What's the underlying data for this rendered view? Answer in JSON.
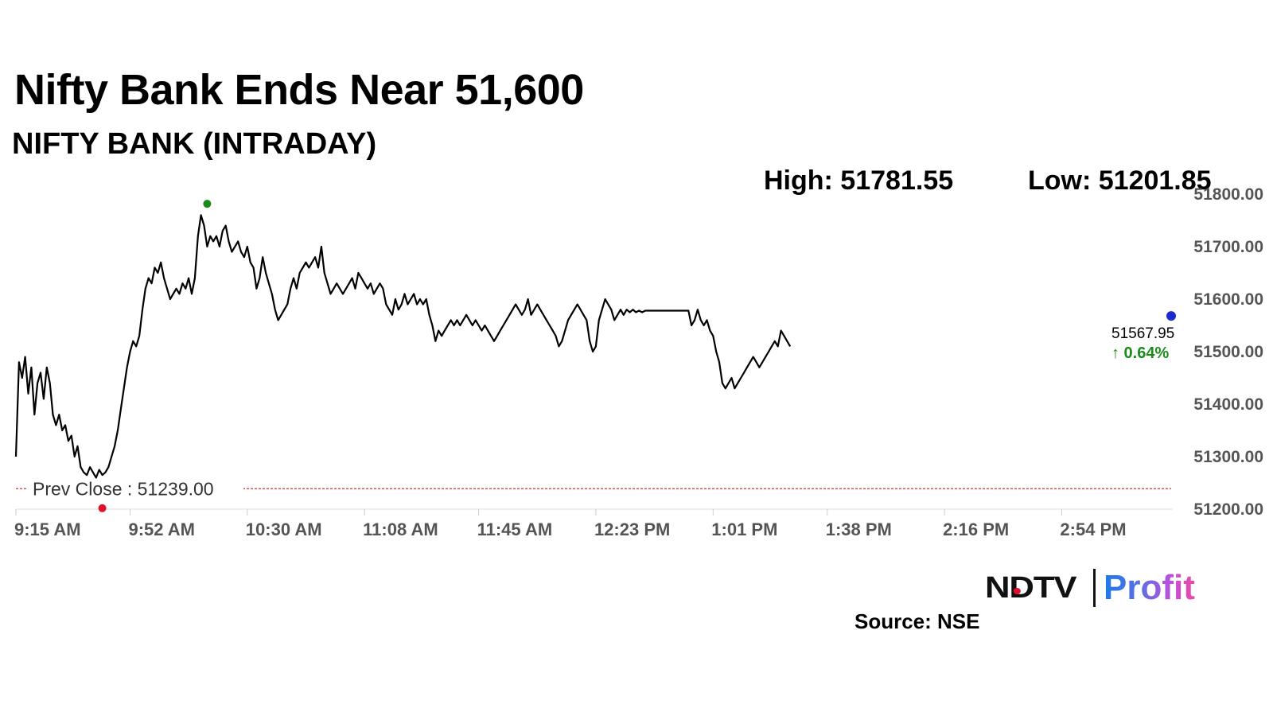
{
  "title": "Nifty Bank Ends Near 51,600",
  "subtitle": "NIFTY BANK (INTRADAY)",
  "high_label": "High: 51781.55",
  "low_label": "Low: 51201.85",
  "source": "Source: NSE",
  "brand": {
    "ndtv": "NDTV",
    "profit": "Profit"
  },
  "colors": {
    "line": "#000000",
    "prev_close": "#e0302a",
    "high_marker": "#1a8a1a",
    "low_marker": "#e0102a",
    "close_marker": "#1a2ad0",
    "change_up": "#1a8a1a"
  },
  "chart_data": {
    "type": "line",
    "title": "NIFTY BANK (INTRADAY)",
    "ylim": [
      51200,
      51800
    ],
    "y_ticks": [
      "51200.00",
      "51300.00",
      "51400.00",
      "51500.00",
      "51600.00",
      "51700.00",
      "51800.00"
    ],
    "x_ticks": [
      "9:15 AM",
      "9:52 AM",
      "10:30 AM",
      "11:08 AM",
      "11:45 AM",
      "12:23 PM",
      "1:01 PM",
      "1:38 PM",
      "2:16 PM",
      "2:54 PM"
    ],
    "x_tick_minutes": [
      555,
      592,
      630,
      668,
      705,
      743,
      781,
      818,
      856,
      894
    ],
    "xlim_minutes": [
      555,
      930
    ],
    "prev_close": {
      "label": "Prev Close : 51239.00",
      "value": 51239.0
    },
    "high": {
      "value": 51781.55,
      "time": "10:17 AM"
    },
    "low": {
      "value": 51201.85,
      "time": "9:43 AM"
    },
    "close": {
      "value": 51567.95,
      "change_label": "↑ 0.64%"
    },
    "series": [
      {
        "values": [
          [
            555,
            51300
          ],
          [
            556,
            51480
          ],
          [
            557,
            51450
          ],
          [
            558,
            51490
          ],
          [
            559,
            51420
          ],
          [
            560,
            51470
          ],
          [
            561,
            51380
          ],
          [
            562,
            51440
          ],
          [
            563,
            51460
          ],
          [
            564,
            51410
          ],
          [
            565,
            51470
          ],
          [
            566,
            51440
          ],
          [
            567,
            51380
          ],
          [
            568,
            51360
          ],
          [
            569,
            51380
          ],
          [
            570,
            51350
          ],
          [
            571,
            51360
          ],
          [
            572,
            51330
          ],
          [
            573,
            51340
          ],
          [
            574,
            51300
          ],
          [
            575,
            51320
          ],
          [
            576,
            51280
          ],
          [
            577,
            51270
          ],
          [
            578,
            51265
          ],
          [
            579,
            51280
          ],
          [
            580,
            51270
          ],
          [
            581,
            51260
          ],
          [
            582,
            51275
          ],
          [
            583,
            51265
          ],
          [
            584,
            51270
          ],
          [
            585,
            51280
          ],
          [
            586,
            51300
          ],
          [
            587,
            51320
          ],
          [
            588,
            51350
          ],
          [
            589,
            51390
          ],
          [
            590,
            51430
          ],
          [
            591,
            51470
          ],
          [
            592,
            51500
          ],
          [
            593,
            51520
          ],
          [
            594,
            51510
          ],
          [
            595,
            51530
          ],
          [
            596,
            51580
          ],
          [
            597,
            51620
          ],
          [
            598,
            51640
          ],
          [
            599,
            51630
          ],
          [
            600,
            51660
          ],
          [
            601,
            51650
          ],
          [
            602,
            51670
          ],
          [
            603,
            51640
          ],
          [
            604,
            51620
          ],
          [
            605,
            51600
          ],
          [
            606,
            51610
          ],
          [
            607,
            51620
          ],
          [
            608,
            51610
          ],
          [
            609,
            51630
          ],
          [
            610,
            51620
          ],
          [
            611,
            51640
          ],
          [
            612,
            51610
          ],
          [
            613,
            51640
          ],
          [
            614,
            51720
          ],
          [
            615,
            51760
          ],
          [
            616,
            51740
          ],
          [
            617,
            51700
          ],
          [
            618,
            51720
          ],
          [
            619,
            51710
          ],
          [
            620,
            51720
          ],
          [
            621,
            51700
          ],
          [
            622,
            51730
          ],
          [
            623,
            51740
          ],
          [
            624,
            51710
          ],
          [
            625,
            51690
          ],
          [
            626,
            51700
          ],
          [
            627,
            51710
          ],
          [
            628,
            51690
          ],
          [
            629,
            51680
          ],
          [
            630,
            51700
          ],
          [
            631,
            51670
          ],
          [
            632,
            51660
          ],
          [
            633,
            51620
          ],
          [
            634,
            51640
          ],
          [
            635,
            51680
          ],
          [
            636,
            51650
          ],
          [
            637,
            51630
          ],
          [
            638,
            51610
          ],
          [
            639,
            51580
          ],
          [
            640,
            51560
          ],
          [
            641,
            51570
          ],
          [
            642,
            51580
          ],
          [
            643,
            51590
          ],
          [
            644,
            51620
          ],
          [
            645,
            51640
          ],
          [
            646,
            51620
          ],
          [
            647,
            51650
          ],
          [
            648,
            51660
          ],
          [
            649,
            51670
          ],
          [
            650,
            51660
          ],
          [
            651,
            51670
          ],
          [
            652,
            51680
          ],
          [
            653,
            51660
          ],
          [
            654,
            51700
          ],
          [
            655,
            51650
          ],
          [
            656,
            51630
          ],
          [
            657,
            51610
          ],
          [
            658,
            51620
          ],
          [
            659,
            51630
          ],
          [
            660,
            51620
          ],
          [
            661,
            51610
          ],
          [
            662,
            51620
          ],
          [
            663,
            51630
          ],
          [
            664,
            51640
          ],
          [
            665,
            51620
          ],
          [
            666,
            51650
          ],
          [
            667,
            51640
          ],
          [
            668,
            51630
          ],
          [
            669,
            51620
          ],
          [
            670,
            51630
          ],
          [
            671,
            51610
          ],
          [
            672,
            51620
          ],
          [
            673,
            51630
          ],
          [
            674,
            51620
          ],
          [
            675,
            51590
          ],
          [
            676,
            51580
          ],
          [
            677,
            51570
          ],
          [
            678,
            51600
          ],
          [
            679,
            51580
          ],
          [
            680,
            51590
          ],
          [
            681,
            51610
          ],
          [
            682,
            51590
          ],
          [
            683,
            51600
          ],
          [
            684,
            51610
          ],
          [
            685,
            51590
          ],
          [
            686,
            51600
          ],
          [
            687,
            51590
          ],
          [
            688,
            51600
          ],
          [
            689,
            51570
          ],
          [
            690,
            51550
          ],
          [
            691,
            51520
          ],
          [
            692,
            51540
          ],
          [
            693,
            51530
          ],
          [
            694,
            51540
          ],
          [
            695,
            51550
          ],
          [
            696,
            51560
          ],
          [
            697,
            51550
          ],
          [
            698,
            51560
          ],
          [
            699,
            51550
          ],
          [
            700,
            51560
          ],
          [
            701,
            51570
          ],
          [
            702,
            51560
          ],
          [
            703,
            51550
          ],
          [
            704,
            51560
          ],
          [
            705,
            51550
          ],
          [
            706,
            51540
          ],
          [
            707,
            51550
          ],
          [
            708,
            51540
          ],
          [
            709,
            51530
          ],
          [
            710,
            51520
          ],
          [
            711,
            51530
          ],
          [
            712,
            51540
          ],
          [
            713,
            51550
          ],
          [
            714,
            51560
          ],
          [
            715,
            51570
          ],
          [
            716,
            51580
          ],
          [
            717,
            51590
          ],
          [
            718,
            51580
          ],
          [
            719,
            51570
          ],
          [
            720,
            51580
          ],
          [
            721,
            51600
          ],
          [
            722,
            51570
          ],
          [
            723,
            51580
          ],
          [
            724,
            51590
          ],
          [
            725,
            51580
          ],
          [
            726,
            51570
          ],
          [
            727,
            51560
          ],
          [
            728,
            51550
          ],
          [
            729,
            51540
          ],
          [
            730,
            51530
          ],
          [
            731,
            51510
          ],
          [
            732,
            51520
          ],
          [
            733,
            51540
          ],
          [
            734,
            51560
          ],
          [
            735,
            51570
          ],
          [
            736,
            51580
          ],
          [
            737,
            51590
          ],
          [
            738,
            51580
          ],
          [
            739,
            51570
          ],
          [
            740,
            51560
          ],
          [
            741,
            51520
          ],
          [
            742,
            51500
          ],
          [
            743,
            51510
          ],
          [
            744,
            51560
          ],
          [
            745,
            51580
          ],
          [
            746,
            51600
          ],
          [
            747,
            51590
          ],
          [
            748,
            51580
          ],
          [
            749,
            51560
          ],
          [
            750,
            51570
          ],
          [
            751,
            51580
          ],
          [
            752,
            51570
          ],
          [
            753,
            51580
          ],
          [
            754,
            51575
          ],
          [
            755,
            51580
          ],
          [
            756,
            51575
          ],
          [
            757,
            51578
          ],
          [
            758,
            51575
          ],
          [
            759,
            51578
          ],
          [
            760,
            51578
          ],
          [
            761,
            51578
          ],
          [
            762,
            51578
          ],
          [
            763,
            51578
          ],
          [
            764,
            51578
          ],
          [
            765,
            51578
          ],
          [
            766,
            51578
          ],
          [
            767,
            51578
          ],
          [
            768,
            51578
          ],
          [
            769,
            51578
          ],
          [
            770,
            51578
          ],
          [
            771,
            51578
          ],
          [
            772,
            51578
          ],
          [
            773,
            51578
          ],
          [
            774,
            51550
          ],
          [
            775,
            51560
          ],
          [
            776,
            51580
          ],
          [
            777,
            51560
          ],
          [
            778,
            51550
          ],
          [
            779,
            51560
          ],
          [
            780,
            51540
          ],
          [
            781,
            51530
          ],
          [
            782,
            51500
          ],
          [
            783,
            51480
          ],
          [
            784,
            51440
          ],
          [
            785,
            51430
          ],
          [
            786,
            51440
          ],
          [
            787,
            51450
          ],
          [
            788,
            51430
          ],
          [
            789,
            51440
          ],
          [
            790,
            51450
          ],
          [
            791,
            51460
          ],
          [
            792,
            51470
          ],
          [
            793,
            51480
          ],
          [
            794,
            51490
          ],
          [
            795,
            51480
          ],
          [
            796,
            51470
          ],
          [
            797,
            51480
          ],
          [
            798,
            51490
          ],
          [
            799,
            51500
          ],
          [
            800,
            51510
          ],
          [
            801,
            51520
          ],
          [
            802,
            51510
          ],
          [
            803,
            51540
          ],
          [
            804,
            51530
          ],
          [
            805,
            51520
          ],
          [
            806,
            51510
          ]
        ]
      }
    ]
  }
}
